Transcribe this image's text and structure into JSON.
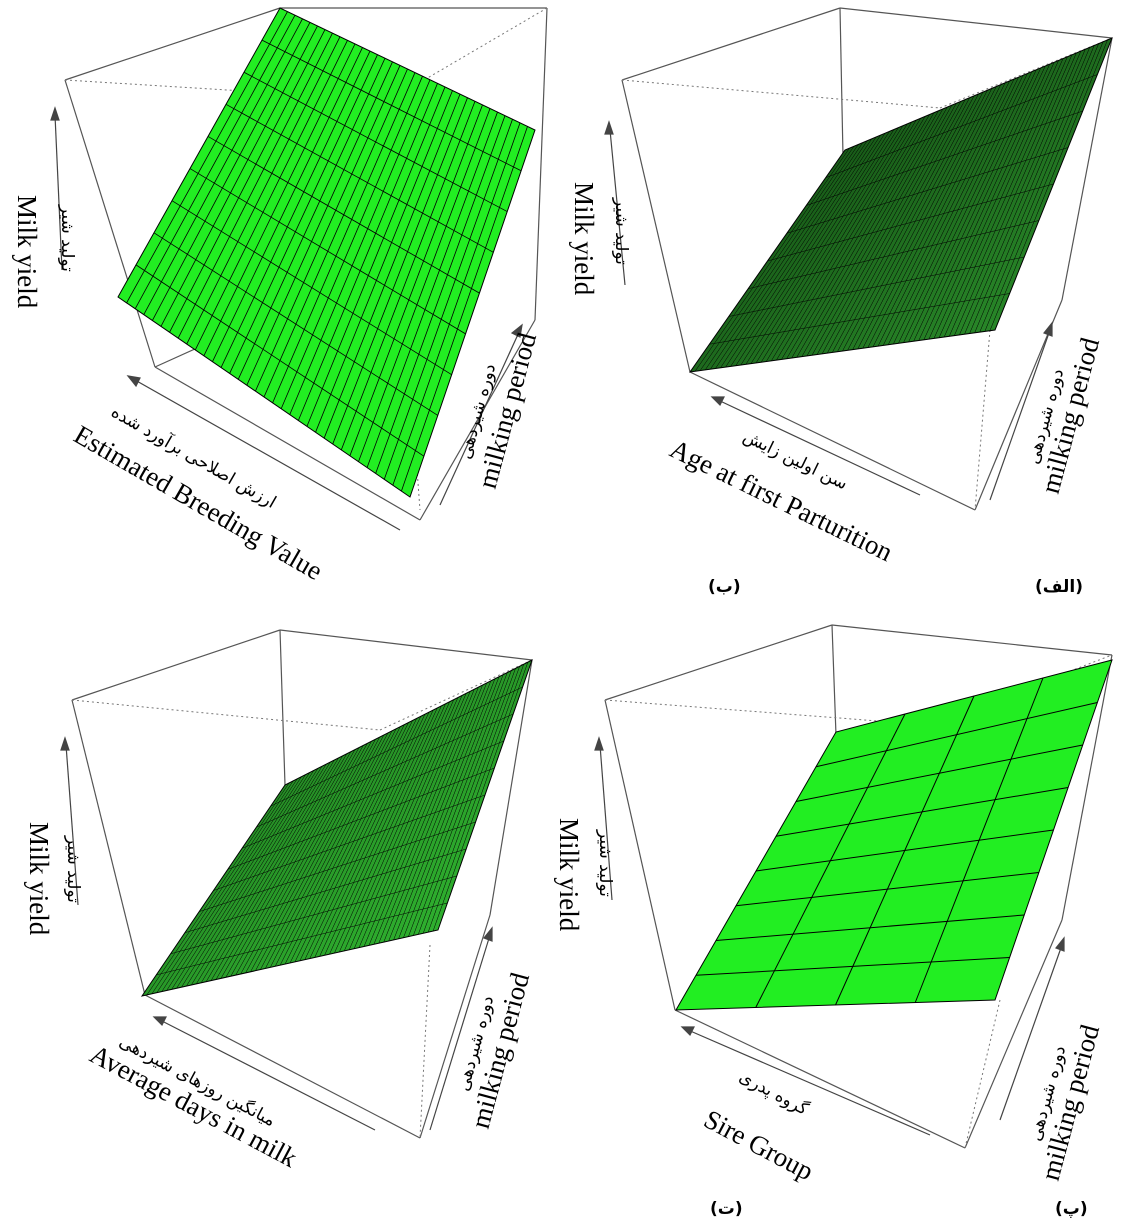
{
  "panels": [
    {
      "id": "alef",
      "label": "(الف)",
      "z_en": "Milk yield",
      "z_fa": "تولید شیر",
      "x_en": "Age at first Parturition",
      "x_fa": "سن اولین زایش",
      "y_en": "milking period",
      "y_fa": "دوره شیردهی",
      "surface_color": "#1f7a1f",
      "shading": "dark",
      "grid": {
        "rows": 8,
        "cols": 60
      }
    },
    {
      "id": "be",
      "label": "(ب)",
      "z_en": "Milk yield",
      "z_fa": "تولید شیر",
      "x_en": "Estimated Breeding Value",
      "x_fa": "ارزش اصلاحی برآورد شده",
      "y_en": "milking period",
      "y_fa": "دوره شیردهی",
      "surface_color": "#22ee22",
      "shading": "flat",
      "grid": {
        "rows": 9,
        "cols": 34
      }
    },
    {
      "id": "pe",
      "label": "(پ)",
      "z_en": "Milk yield",
      "z_fa": "تولید شیر",
      "x_en": "Sire Group",
      "x_fa": "گروه پدری",
      "y_en": "milking period",
      "y_fa": "دوره شیردهی",
      "surface_color": "#22ee22",
      "shading": "flat",
      "grid": {
        "rows": 8,
        "cols": 4
      }
    },
    {
      "id": "te",
      "label": "(ت)",
      "z_en": "Milk yield",
      "z_fa": "تولید شیر",
      "x_en": "Average days in milk",
      "x_fa": "میانگین روزهای شیردهی",
      "y_en": "milking period",
      "y_fa": "دوره شیردهی",
      "surface_color": "#2aa82a",
      "shading": "medium",
      "grid": {
        "rows": 10,
        "cols": 60
      }
    }
  ],
  "chart_data": [
    {
      "type": "surface",
      "title": "",
      "xlabel": "Age at first Parturition",
      "ylabel": "milking period",
      "zlabel": "Milk yield"
    },
    {
      "type": "surface",
      "title": "",
      "xlabel": "Estimated Breeding Value",
      "ylabel": "milking period",
      "zlabel": "Milk yield"
    },
    {
      "type": "surface",
      "title": "",
      "xlabel": "Sire Group",
      "ylabel": "milking period",
      "zlabel": "Milk yield"
    },
    {
      "type": "surface",
      "title": "",
      "xlabel": "Average days in milk",
      "ylabel": "milking period",
      "zlabel": "Milk yield"
    }
  ]
}
